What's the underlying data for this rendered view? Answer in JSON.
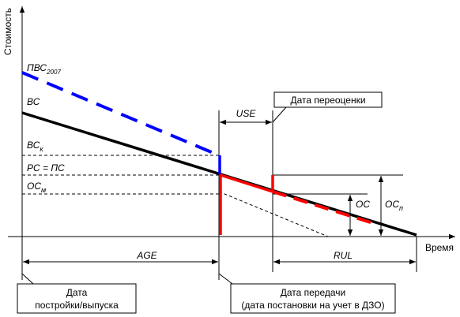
{
  "axes": {
    "y_label": "Стоимость",
    "x_label": "Время"
  },
  "labels": {
    "pvs": {
      "main": "ПВС",
      "sub": "2007"
    },
    "vs": "ВС",
    "vsk": {
      "main": "ВС",
      "sub": "к"
    },
    "rs_ps": "РС = ПС",
    "osm": {
      "main": "ОС",
      "sub": "м"
    },
    "os": "ОС",
    "osp": {
      "main": "ОС",
      "sub": "п"
    }
  },
  "dimensions": {
    "use": "USE",
    "age": "AGE",
    "rul": "RUL"
  },
  "callouts": {
    "revaluation": [
      "Дата переоценки"
    ],
    "construction": [
      "Дата",
      "постройки/выпуска"
    ],
    "transfer": [
      "Дата передачи",
      "(дата постановки на учет в ДЗО)"
    ]
  }
}
